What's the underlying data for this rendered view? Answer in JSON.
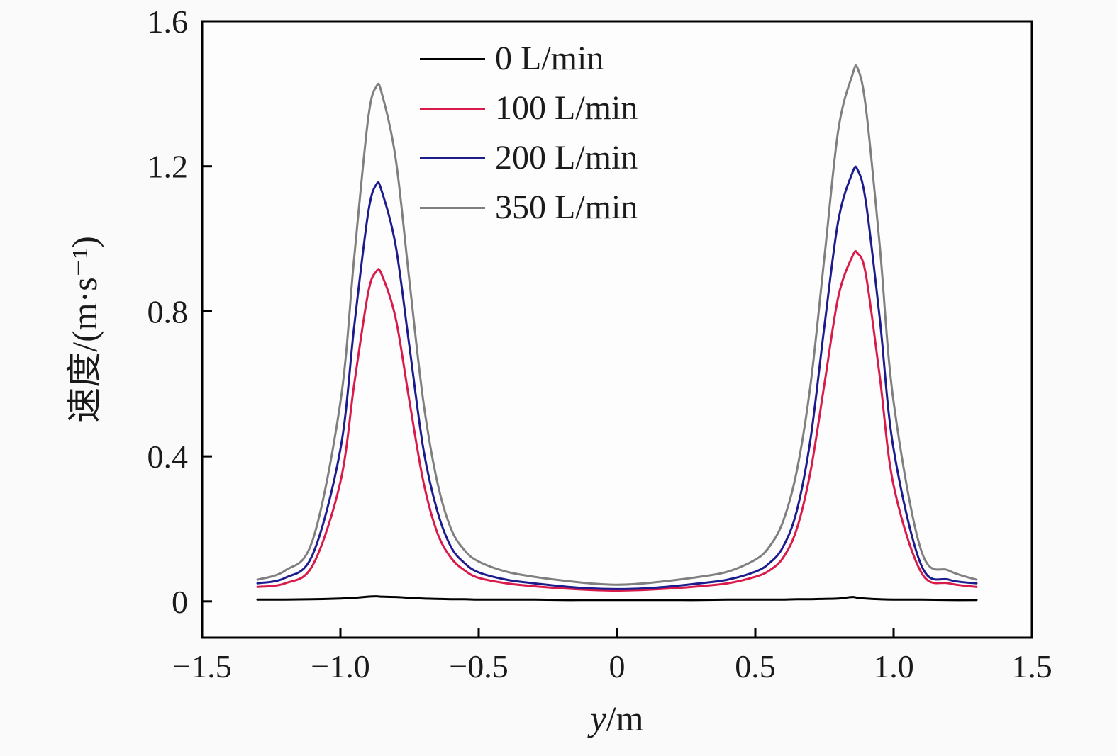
{
  "figure": {
    "background": "#fafafa",
    "axis_color": "#000000"
  },
  "chart_data": {
    "type": "line",
    "title": "",
    "xlabel_italic": "y",
    "xlabel_rest": "/m",
    "ylabel": "速度/(m·s⁻¹)",
    "xlim": [
      -1.5,
      1.5
    ],
    "ylim": [
      -0.1,
      1.6
    ],
    "grid": false,
    "legend_position": "inside-top-left",
    "xticks": {
      "values": [
        -1.5,
        -1.0,
        -0.5,
        0,
        0.5,
        1.0,
        1.5
      ],
      "labels": [
        "−1.5",
        "−1.0",
        "−0.5",
        "0",
        "0.5",
        "1.0",
        "1.5"
      ]
    },
    "yticks": {
      "values": [
        0,
        0.4,
        0.8,
        1.2,
        1.6
      ],
      "labels": [
        "0",
        "0.4",
        "0.8",
        "1.2",
        "1.6"
      ]
    },
    "x": [
      -1.3,
      -1.2,
      -1.1,
      -1.0,
      -0.95,
      -0.9,
      -0.87,
      -0.85,
      -0.8,
      -0.75,
      -0.7,
      -0.65,
      -0.6,
      -0.55,
      -0.5,
      -0.4,
      -0.3,
      -0.2,
      -0.1,
      0,
      0.1,
      0.2,
      0.3,
      0.4,
      0.5,
      0.55,
      0.6,
      0.65,
      0.7,
      0.75,
      0.8,
      0.85,
      0.87,
      0.9,
      0.95,
      1.0,
      1.1,
      1.2,
      1.3
    ],
    "series": [
      {
        "name": "0 L/min",
        "color": "#000000",
        "values": [
          0.005,
          0.005,
          0.006,
          0.008,
          0.01,
          0.013,
          0.014,
          0.013,
          0.012,
          0.01,
          0.008,
          0.007,
          0.006,
          0.006,
          0.005,
          0.005,
          0.005,
          0.004,
          0.004,
          0.004,
          0.004,
          0.004,
          0.004,
          0.005,
          0.005,
          0.005,
          0.005,
          0.006,
          0.006,
          0.007,
          0.008,
          0.012,
          0.01,
          0.008,
          0.006,
          0.005,
          0.005,
          0.004,
          0.004
        ]
      },
      {
        "name": "100 L/min",
        "color": "#d81b4a",
        "values": [
          0.04,
          0.05,
          0.1,
          0.33,
          0.6,
          0.85,
          0.91,
          0.9,
          0.78,
          0.55,
          0.33,
          0.19,
          0.12,
          0.085,
          0.065,
          0.05,
          0.042,
          0.036,
          0.032,
          0.03,
          0.032,
          0.036,
          0.042,
          0.05,
          0.068,
          0.085,
          0.12,
          0.2,
          0.36,
          0.6,
          0.84,
          0.95,
          0.96,
          0.9,
          0.62,
          0.32,
          0.08,
          0.05,
          0.04
        ]
      },
      {
        "name": "200 L/min",
        "color": "#1c1c8f",
        "values": [
          0.05,
          0.065,
          0.13,
          0.42,
          0.76,
          1.07,
          1.15,
          1.13,
          0.98,
          0.7,
          0.42,
          0.25,
          0.15,
          0.105,
          0.08,
          0.06,
          0.05,
          0.042,
          0.036,
          0.034,
          0.036,
          0.042,
          0.05,
          0.06,
          0.082,
          0.105,
          0.15,
          0.25,
          0.45,
          0.76,
          1.05,
          1.18,
          1.19,
          1.1,
          0.78,
          0.42,
          0.1,
          0.06,
          0.05
        ]
      },
      {
        "name": "350 L/min",
        "color": "#7f7f7f",
        "values": [
          0.06,
          0.085,
          0.17,
          0.55,
          0.95,
          1.33,
          1.42,
          1.4,
          1.22,
          0.88,
          0.55,
          0.33,
          0.2,
          0.14,
          0.11,
          0.082,
          0.068,
          0.058,
          0.05,
          0.046,
          0.05,
          0.058,
          0.068,
          0.082,
          0.115,
          0.15,
          0.22,
          0.36,
          0.6,
          0.95,
          1.3,
          1.45,
          1.47,
          1.36,
          0.98,
          0.55,
          0.14,
          0.085,
          0.06
        ]
      }
    ]
  }
}
